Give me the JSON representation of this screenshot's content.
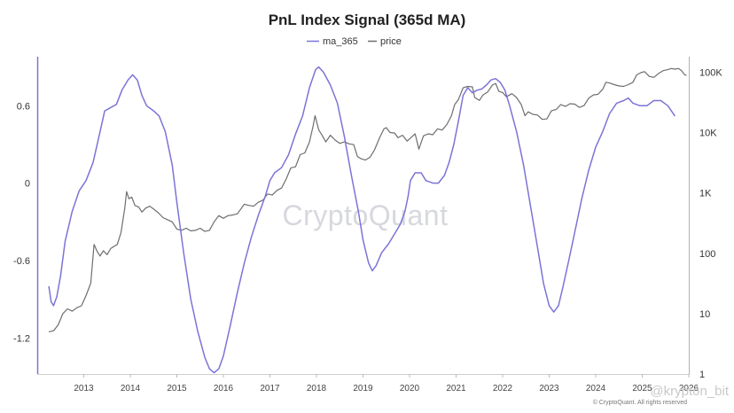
{
  "chart_data": {
    "type": "line",
    "title": "PnL Index Signal (365d MA)",
    "legend": {
      "placement": "top-center",
      "entries": [
        "ma_365",
        "price"
      ]
    },
    "colors": {
      "ma_365": "#7b74d6",
      "price": "#6e6e6e"
    },
    "x_ticks": [
      "2013",
      "2014",
      "2015",
      "2016",
      "2017",
      "2018",
      "2019",
      "2020",
      "2021",
      "2022",
      "2023",
      "2024",
      "2025",
      "2026"
    ],
    "xlim": [
      2012.0,
      2026.0
    ],
    "y_left": {
      "ticks": [
        "0.6",
        "0",
        "-0.6",
        "-1.2"
      ],
      "tick_values": [
        0.6,
        0.0,
        -0.6,
        -1.2
      ],
      "ylim": [
        -1.48,
        0.98
      ]
    },
    "y_right": {
      "scale": "log",
      "ticks": [
        "100K",
        "10K",
        "1K",
        "100",
        "10",
        "1"
      ],
      "tick_values": [
        100000,
        10000,
        1000,
        100,
        10,
        1
      ],
      "ylim": [
        1,
        180000
      ]
    },
    "grid": false,
    "series": [
      {
        "name": "ma_365",
        "axis": "left",
        "points": [
          [
            2012.25,
            -0.8
          ],
          [
            2012.3,
            -0.92
          ],
          [
            2012.35,
            -0.95
          ],
          [
            2012.42,
            -0.88
          ],
          [
            2012.5,
            -0.72
          ],
          [
            2012.6,
            -0.45
          ],
          [
            2012.75,
            -0.22
          ],
          [
            2012.9,
            -0.06
          ],
          [
            2013.05,
            0.02
          ],
          [
            2013.2,
            0.16
          ],
          [
            2013.35,
            0.4
          ],
          [
            2013.45,
            0.56
          ],
          [
            2013.55,
            0.58
          ],
          [
            2013.7,
            0.61
          ],
          [
            2013.82,
            0.72
          ],
          [
            2013.95,
            0.8
          ],
          [
            2014.05,
            0.84
          ],
          [
            2014.15,
            0.8
          ],
          [
            2014.25,
            0.68
          ],
          [
            2014.35,
            0.6
          ],
          [
            2014.5,
            0.56
          ],
          [
            2014.62,
            0.52
          ],
          [
            2014.75,
            0.4
          ],
          [
            2014.9,
            0.14
          ],
          [
            2015.0,
            -0.15
          ],
          [
            2015.15,
            -0.55
          ],
          [
            2015.3,
            -0.9
          ],
          [
            2015.45,
            -1.15
          ],
          [
            2015.6,
            -1.35
          ],
          [
            2015.7,
            -1.44
          ],
          [
            2015.8,
            -1.47
          ],
          [
            2015.9,
            -1.44
          ],
          [
            2016.0,
            -1.34
          ],
          [
            2016.15,
            -1.1
          ],
          [
            2016.3,
            -0.85
          ],
          [
            2016.45,
            -0.62
          ],
          [
            2016.6,
            -0.42
          ],
          [
            2016.75,
            -0.25
          ],
          [
            2016.9,
            -0.1
          ],
          [
            2017.0,
            0.02
          ],
          [
            2017.1,
            0.08
          ],
          [
            2017.25,
            0.12
          ],
          [
            2017.4,
            0.22
          ],
          [
            2017.55,
            0.38
          ],
          [
            2017.7,
            0.52
          ],
          [
            2017.85,
            0.74
          ],
          [
            2017.98,
            0.88
          ],
          [
            2018.05,
            0.9
          ],
          [
            2018.15,
            0.86
          ],
          [
            2018.3,
            0.76
          ],
          [
            2018.45,
            0.62
          ],
          [
            2018.6,
            0.36
          ],
          [
            2018.75,
            0.06
          ],
          [
            2018.9,
            -0.22
          ],
          [
            2019.0,
            -0.44
          ],
          [
            2019.12,
            -0.62
          ],
          [
            2019.2,
            -0.68
          ],
          [
            2019.28,
            -0.64
          ],
          [
            2019.4,
            -0.54
          ],
          [
            2019.55,
            -0.47
          ],
          [
            2019.7,
            -0.38
          ],
          [
            2019.8,
            -0.32
          ],
          [
            2019.9,
            -0.22
          ],
          [
            2019.97,
            -0.1
          ],
          [
            2020.02,
            0.02
          ],
          [
            2020.12,
            0.08
          ],
          [
            2020.25,
            0.08
          ],
          [
            2020.35,
            0.02
          ],
          [
            2020.5,
            0.0
          ],
          [
            2020.62,
            0.0
          ],
          [
            2020.75,
            0.06
          ],
          [
            2020.85,
            0.16
          ],
          [
            2020.95,
            0.3
          ],
          [
            2021.05,
            0.48
          ],
          [
            2021.15,
            0.68
          ],
          [
            2021.25,
            0.74
          ],
          [
            2021.35,
            0.7
          ],
          [
            2021.45,
            0.72
          ],
          [
            2021.55,
            0.73
          ],
          [
            2021.65,
            0.76
          ],
          [
            2021.75,
            0.8
          ],
          [
            2021.85,
            0.81
          ],
          [
            2021.95,
            0.78
          ],
          [
            2022.05,
            0.72
          ],
          [
            2022.15,
            0.6
          ],
          [
            2022.3,
            0.4
          ],
          [
            2022.45,
            0.14
          ],
          [
            2022.6,
            -0.18
          ],
          [
            2022.75,
            -0.5
          ],
          [
            2022.88,
            -0.78
          ],
          [
            2023.0,
            -0.95
          ],
          [
            2023.1,
            -1.0
          ],
          [
            2023.2,
            -0.95
          ],
          [
            2023.3,
            -0.8
          ],
          [
            2023.42,
            -0.6
          ],
          [
            2023.55,
            -0.38
          ],
          [
            2023.7,
            -0.12
          ],
          [
            2023.85,
            0.1
          ],
          [
            2024.0,
            0.28
          ],
          [
            2024.15,
            0.4
          ],
          [
            2024.3,
            0.54
          ],
          [
            2024.45,
            0.62
          ],
          [
            2024.6,
            0.64
          ],
          [
            2024.7,
            0.66
          ],
          [
            2024.8,
            0.62
          ],
          [
            2024.95,
            0.6
          ],
          [
            2025.1,
            0.6
          ],
          [
            2025.25,
            0.64
          ],
          [
            2025.4,
            0.64
          ],
          [
            2025.55,
            0.6
          ],
          [
            2025.7,
            0.52
          ]
        ]
      },
      {
        "name": "price",
        "axis": "right",
        "points": [
          [
            2012.25,
            5
          ],
          [
            2012.35,
            5.2
          ],
          [
            2012.45,
            6.5
          ],
          [
            2012.55,
            10
          ],
          [
            2012.65,
            12
          ],
          [
            2012.75,
            11
          ],
          [
            2012.85,
            12.5
          ],
          [
            2012.95,
            13.5
          ],
          [
            2013.05,
            20
          ],
          [
            2013.15,
            32
          ],
          [
            2013.22,
            140
          ],
          [
            2013.28,
            110
          ],
          [
            2013.35,
            90
          ],
          [
            2013.42,
            110
          ],
          [
            2013.5,
            95
          ],
          [
            2013.58,
            120
          ],
          [
            2013.65,
            130
          ],
          [
            2013.72,
            140
          ],
          [
            2013.8,
            220
          ],
          [
            2013.88,
            550
          ],
          [
            2013.92,
            1050
          ],
          [
            2013.97,
            800
          ],
          [
            2014.03,
            850
          ],
          [
            2014.1,
            620
          ],
          [
            2014.18,
            580
          ],
          [
            2014.25,
            480
          ],
          [
            2014.33,
            560
          ],
          [
            2014.42,
            600
          ],
          [
            2014.5,
            540
          ],
          [
            2014.6,
            470
          ],
          [
            2014.7,
            390
          ],
          [
            2014.8,
            360
          ],
          [
            2014.9,
            330
          ],
          [
            2015.0,
            250
          ],
          [
            2015.1,
            240
          ],
          [
            2015.2,
            260
          ],
          [
            2015.3,
            235
          ],
          [
            2015.4,
            240
          ],
          [
            2015.5,
            260
          ],
          [
            2015.6,
            230
          ],
          [
            2015.7,
            240
          ],
          [
            2015.8,
            330
          ],
          [
            2015.9,
            420
          ],
          [
            2016.0,
            380
          ],
          [
            2016.1,
            420
          ],
          [
            2016.2,
            430
          ],
          [
            2016.3,
            450
          ],
          [
            2016.45,
            650
          ],
          [
            2016.55,
            620
          ],
          [
            2016.65,
            600
          ],
          [
            2016.75,
            700
          ],
          [
            2016.85,
            760
          ],
          [
            2016.95,
            960
          ],
          [
            2017.05,
            920
          ],
          [
            2017.15,
            1100
          ],
          [
            2017.25,
            1200
          ],
          [
            2017.35,
            1700
          ],
          [
            2017.45,
            2600
          ],
          [
            2017.55,
            2700
          ],
          [
            2017.65,
            4300
          ],
          [
            2017.75,
            4600
          ],
          [
            2017.85,
            7000
          ],
          [
            2017.93,
            13000
          ],
          [
            2017.97,
            19000
          ],
          [
            2018.05,
            11000
          ],
          [
            2018.12,
            9000
          ],
          [
            2018.2,
            7000
          ],
          [
            2018.3,
            9000
          ],
          [
            2018.4,
            7500
          ],
          [
            2018.5,
            6600
          ],
          [
            2018.6,
            7000
          ],
          [
            2018.7,
            6500
          ],
          [
            2018.8,
            6300
          ],
          [
            2018.88,
            4000
          ],
          [
            2018.95,
            3700
          ],
          [
            2019.05,
            3500
          ],
          [
            2019.15,
            3900
          ],
          [
            2019.25,
            5200
          ],
          [
            2019.35,
            8000
          ],
          [
            2019.45,
            11500
          ],
          [
            2019.5,
            12000
          ],
          [
            2019.58,
            10000
          ],
          [
            2019.68,
            9800
          ],
          [
            2019.75,
            8200
          ],
          [
            2019.85,
            9000
          ],
          [
            2019.95,
            7200
          ],
          [
            2020.05,
            8500
          ],
          [
            2020.12,
            9500
          ],
          [
            2020.2,
            5300
          ],
          [
            2020.3,
            8800
          ],
          [
            2020.4,
            9500
          ],
          [
            2020.5,
            9200
          ],
          [
            2020.6,
            11500
          ],
          [
            2020.7,
            11000
          ],
          [
            2020.8,
            13500
          ],
          [
            2020.9,
            19000
          ],
          [
            2020.97,
            29000
          ],
          [
            2021.05,
            35000
          ],
          [
            2021.15,
            55000
          ],
          [
            2021.25,
            58000
          ],
          [
            2021.35,
            57000
          ],
          [
            2021.4,
            38000
          ],
          [
            2021.5,
            34000
          ],
          [
            2021.58,
            42000
          ],
          [
            2021.68,
            47000
          ],
          [
            2021.78,
            61000
          ],
          [
            2021.85,
            65000
          ],
          [
            2021.92,
            48000
          ],
          [
            2022.0,
            46000
          ],
          [
            2022.08,
            39000
          ],
          [
            2022.2,
            44000
          ],
          [
            2022.3,
            38000
          ],
          [
            2022.4,
            29000
          ],
          [
            2022.48,
            19000
          ],
          [
            2022.55,
            22000
          ],
          [
            2022.65,
            20000
          ],
          [
            2022.75,
            19500
          ],
          [
            2022.85,
            16500
          ],
          [
            2022.95,
            16800
          ],
          [
            2023.05,
            23000
          ],
          [
            2023.15,
            24000
          ],
          [
            2023.25,
            29000
          ],
          [
            2023.35,
            27000
          ],
          [
            2023.45,
            30000
          ],
          [
            2023.55,
            29500
          ],
          [
            2023.65,
            26000
          ],
          [
            2023.75,
            28000
          ],
          [
            2023.85,
            37000
          ],
          [
            2023.95,
            42000
          ],
          [
            2024.05,
            43000
          ],
          [
            2024.15,
            52000
          ],
          [
            2024.22,
            68000
          ],
          [
            2024.3,
            66000
          ],
          [
            2024.4,
            62000
          ],
          [
            2024.5,
            59000
          ],
          [
            2024.6,
            58000
          ],
          [
            2024.7,
            62000
          ],
          [
            2024.8,
            68000
          ],
          [
            2024.88,
            90000
          ],
          [
            2024.97,
            98000
          ],
          [
            2025.05,
            102000
          ],
          [
            2025.15,
            85000
          ],
          [
            2025.25,
            82000
          ],
          [
            2025.35,
            95000
          ],
          [
            2025.45,
            106000
          ],
          [
            2025.55,
            110000
          ],
          [
            2025.62,
            115000
          ],
          [
            2025.7,
            112000
          ],
          [
            2025.78,
            115000
          ],
          [
            2025.85,
            105000
          ],
          [
            2025.9,
            92000
          ],
          [
            2025.95,
            88000
          ]
        ]
      }
    ],
    "watermark": "CryptoQuant",
    "copyright": "© CryptoQuant. All rights reserved",
    "overlay_handle": "@krypton_bit"
  }
}
